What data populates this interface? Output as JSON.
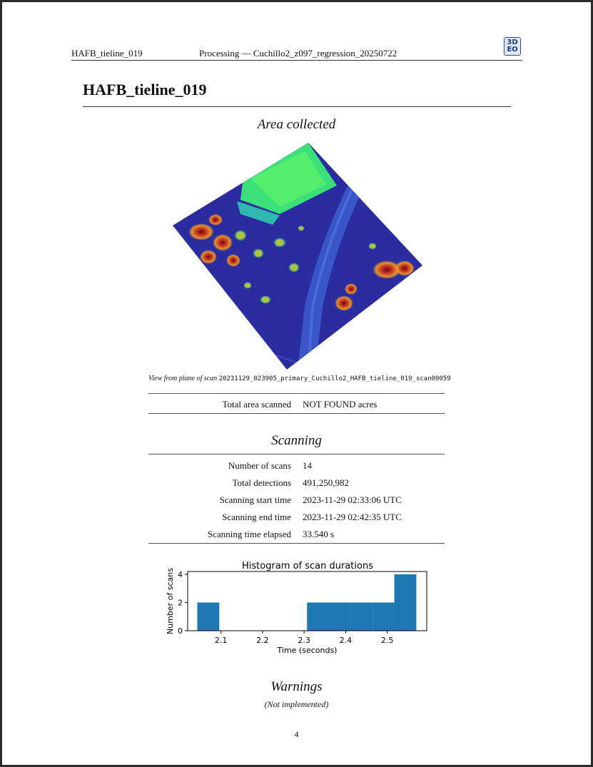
{
  "header": {
    "left": "HAFB_tieline_019",
    "center": "Processing — Cuchillo2_z097_regression_20250722",
    "logo_text_top": "3D",
    "logo_text_bottom": "EO"
  },
  "title": "HAFB_tieline_019",
  "area_section": {
    "heading": "Area collected",
    "caption_prefix": "View from plane of scan",
    "caption_scan": "20231129_023905_primary_Cuchillo2_HAFB_tieline_019_scan00059",
    "rows": [
      {
        "label": "Total area scanned",
        "value": "NOT FOUND acres"
      }
    ]
  },
  "scanning_section": {
    "heading": "Scanning",
    "rows": [
      {
        "label": "Number of scans",
        "value": "14"
      },
      {
        "label": "Total detections",
        "value": "491,250,982"
      },
      {
        "label": "Scanning start time",
        "value": "2023-11-29 02:33:06 UTC"
      },
      {
        "label": "Scanning end time",
        "value": "2023-11-29 02:42:35 UTC"
      },
      {
        "label": "Scanning time elapsed",
        "value": "33.540 s"
      }
    ]
  },
  "chart_data": {
    "type": "bar",
    "title": "Histogram of scan durations",
    "xlabel": "Time (seconds)",
    "ylabel": "Number of scans",
    "bins": [
      {
        "x0": 2.043,
        "x1": 2.096,
        "count": 2
      },
      {
        "x0": 2.096,
        "x1": 2.149,
        "count": 0
      },
      {
        "x0": 2.149,
        "x1": 2.201,
        "count": 0
      },
      {
        "x0": 2.201,
        "x1": 2.254,
        "count": 0
      },
      {
        "x0": 2.254,
        "x1": 2.307,
        "count": 0
      },
      {
        "x0": 2.307,
        "x1": 2.359,
        "count": 2
      },
      {
        "x0": 2.359,
        "x1": 2.412,
        "count": 2
      },
      {
        "x0": 2.412,
        "x1": 2.465,
        "count": 2
      },
      {
        "x0": 2.465,
        "x1": 2.517,
        "count": 2
      },
      {
        "x0": 2.517,
        "x1": 2.57,
        "count": 4
      }
    ],
    "xlim": [
      2.02,
      2.595
    ],
    "ylim": [
      0,
      4.2
    ],
    "xticks": [
      2.1,
      2.2,
      2.3,
      2.4,
      2.5
    ],
    "xtick_labels": [
      "2.1",
      "2.2",
      "2.3",
      "2.4",
      "2.5"
    ],
    "yticks": [
      0,
      2,
      4
    ],
    "ytick_labels": [
      "0",
      "2",
      "4"
    ],
    "bar_color": "#1f77b4",
    "grid": false,
    "legend": "none"
  },
  "warnings_section": {
    "heading": "Warnings",
    "note": "(Not implemented)"
  },
  "page_number": "4",
  "colors": {
    "rule": "#333333",
    "logo_border": "#2f4a8a",
    "bar": "#1f77b4"
  }
}
